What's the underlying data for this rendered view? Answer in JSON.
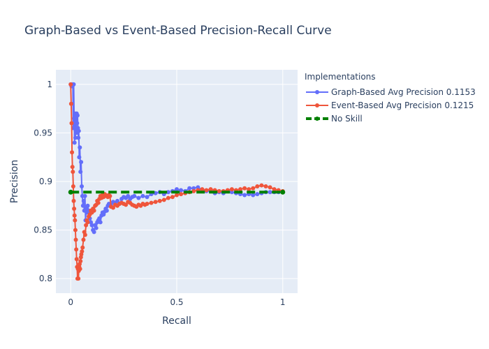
{
  "chart_data": {
    "type": "line",
    "title": "Graph-Based vs Event-Based Precision-Recall Curve",
    "xlabel": "Recall",
    "ylabel": "Precision",
    "xlim": [
      -0.07,
      1.07
    ],
    "ylim": [
      0.785,
      1.015
    ],
    "x_ticks": [
      0,
      0.5,
      1
    ],
    "x_tick_labels": [
      "0",
      "0.5",
      "1"
    ],
    "y_ticks": [
      0.8,
      0.85,
      0.9,
      0.95,
      1
    ],
    "y_tick_labels": [
      "0.8",
      "0.85",
      "0.9",
      "0.95",
      "1"
    ],
    "grid": true,
    "legend": {
      "title": "Implementations",
      "placement": "right"
    },
    "series": [
      {
        "name": "Graph-Based Avg Precision 0.1153",
        "color": "#636efa",
        "mode": "lines+markers",
        "x": [
          0.0,
          0.002,
          0.004,
          0.006,
          0.008,
          0.01,
          0.012,
          0.014,
          0.016,
          0.018,
          0.02,
          0.022,
          0.024,
          0.026,
          0.028,
          0.03,
          0.032,
          0.034,
          0.036,
          0.038,
          0.04,
          0.043,
          0.046,
          0.049,
          0.052,
          0.055,
          0.058,
          0.061,
          0.064,
          0.067,
          0.07,
          0.073,
          0.076,
          0.08,
          0.085,
          0.09,
          0.095,
          0.1,
          0.105,
          0.11,
          0.115,
          0.12,
          0.125,
          0.13,
          0.135,
          0.14,
          0.145,
          0.15,
          0.155,
          0.16,
          0.165,
          0.17,
          0.175,
          0.18,
          0.19,
          0.2,
          0.21,
          0.22,
          0.23,
          0.24,
          0.25,
          0.26,
          0.27,
          0.28,
          0.29,
          0.3,
          0.32,
          0.34,
          0.36,
          0.38,
          0.4,
          0.42,
          0.44,
          0.46,
          0.48,
          0.5,
          0.52,
          0.54,
          0.56,
          0.58,
          0.6,
          0.62,
          0.64,
          0.66,
          0.68,
          0.7,
          0.72,
          0.74,
          0.76,
          0.78,
          0.8,
          0.82,
          0.84,
          0.86,
          0.88,
          0.9,
          0.92,
          0.94,
          0.96,
          0.98,
          1.0
        ],
        "y": [
          1.0,
          1.0,
          0.998,
          1.0,
          0.998,
          1.0,
          0.955,
          1.0,
          0.965,
          0.94,
          0.97,
          0.945,
          0.965,
          0.95,
          0.97,
          0.96,
          0.968,
          0.955,
          0.945,
          0.952,
          0.925,
          0.935,
          0.91,
          0.92,
          0.895,
          0.885,
          0.875,
          0.88,
          0.87,
          0.885,
          0.86,
          0.872,
          0.868,
          0.875,
          0.87,
          0.862,
          0.858,
          0.855,
          0.85,
          0.848,
          0.855,
          0.852,
          0.858,
          0.86,
          0.862,
          0.858,
          0.865,
          0.868,
          0.866,
          0.869,
          0.872,
          0.87,
          0.875,
          0.877,
          0.876,
          0.879,
          0.878,
          0.88,
          0.877,
          0.882,
          0.884,
          0.883,
          0.885,
          0.882,
          0.884,
          0.885,
          0.883,
          0.885,
          0.884,
          0.887,
          0.888,
          0.889,
          0.887,
          0.889,
          0.89,
          0.892,
          0.891,
          0.89,
          0.893,
          0.893,
          0.894,
          0.891,
          0.89,
          0.89,
          0.888,
          0.889,
          0.888,
          0.89,
          0.889,
          0.888,
          0.887,
          0.886,
          0.887,
          0.886,
          0.887,
          0.888,
          0.889,
          0.889,
          0.889,
          0.889,
          0.889
        ]
      },
      {
        "name": "Event-Based Avg Precision 0.1215",
        "color": "#ef553b",
        "mode": "lines+markers",
        "x": [
          0.0,
          0.002,
          0.004,
          0.006,
          0.008,
          0.01,
          0.012,
          0.014,
          0.016,
          0.018,
          0.02,
          0.022,
          0.024,
          0.026,
          0.028,
          0.03,
          0.032,
          0.034,
          0.036,
          0.038,
          0.04,
          0.042,
          0.044,
          0.046,
          0.048,
          0.05,
          0.053,
          0.056,
          0.06,
          0.064,
          0.068,
          0.072,
          0.076,
          0.08,
          0.085,
          0.09,
          0.095,
          0.1,
          0.105,
          0.11,
          0.115,
          0.12,
          0.125,
          0.13,
          0.135,
          0.14,
          0.145,
          0.15,
          0.155,
          0.16,
          0.165,
          0.17,
          0.175,
          0.18,
          0.185,
          0.19,
          0.2,
          0.21,
          0.22,
          0.23,
          0.24,
          0.25,
          0.26,
          0.27,
          0.28,
          0.29,
          0.3,
          0.31,
          0.32,
          0.33,
          0.34,
          0.35,
          0.36,
          0.38,
          0.4,
          0.42,
          0.44,
          0.46,
          0.48,
          0.5,
          0.52,
          0.54,
          0.56,
          0.58,
          0.6,
          0.62,
          0.64,
          0.66,
          0.68,
          0.7,
          0.72,
          0.74,
          0.76,
          0.78,
          0.8,
          0.82,
          0.84,
          0.86,
          0.88,
          0.9,
          0.92,
          0.94,
          0.96,
          0.98,
          1.0
        ],
        "y": [
          1.0,
          0.98,
          0.96,
          0.93,
          0.915,
          0.91,
          0.895,
          0.88,
          0.872,
          0.865,
          0.86,
          0.85,
          0.84,
          0.83,
          0.82,
          0.812,
          0.8,
          0.81,
          0.8,
          0.808,
          0.812,
          0.815,
          0.81,
          0.818,
          0.822,
          0.825,
          0.828,
          0.832,
          0.84,
          0.848,
          0.845,
          0.855,
          0.86,
          0.858,
          0.864,
          0.866,
          0.87,
          0.868,
          0.872,
          0.87,
          0.875,
          0.876,
          0.88,
          0.878,
          0.882,
          0.885,
          0.883,
          0.886,
          0.884,
          0.887,
          0.886,
          0.885,
          0.884,
          0.886,
          0.885,
          0.874,
          0.873,
          0.876,
          0.875,
          0.877,
          0.878,
          0.877,
          0.876,
          0.879,
          0.878,
          0.876,
          0.875,
          0.874,
          0.876,
          0.875,
          0.877,
          0.876,
          0.877,
          0.878,
          0.879,
          0.88,
          0.881,
          0.883,
          0.884,
          0.886,
          0.887,
          0.888,
          0.889,
          0.89,
          0.891,
          0.892,
          0.891,
          0.892,
          0.891,
          0.89,
          0.89,
          0.891,
          0.892,
          0.891,
          0.892,
          0.893,
          0.892,
          0.893,
          0.895,
          0.896,
          0.895,
          0.894,
          0.892,
          0.891,
          0.89
        ]
      },
      {
        "name": "No Skill",
        "color": "#008000",
        "mode": "dashed",
        "x": [
          0,
          1
        ],
        "y": [
          0.889,
          0.889
        ]
      }
    ]
  }
}
